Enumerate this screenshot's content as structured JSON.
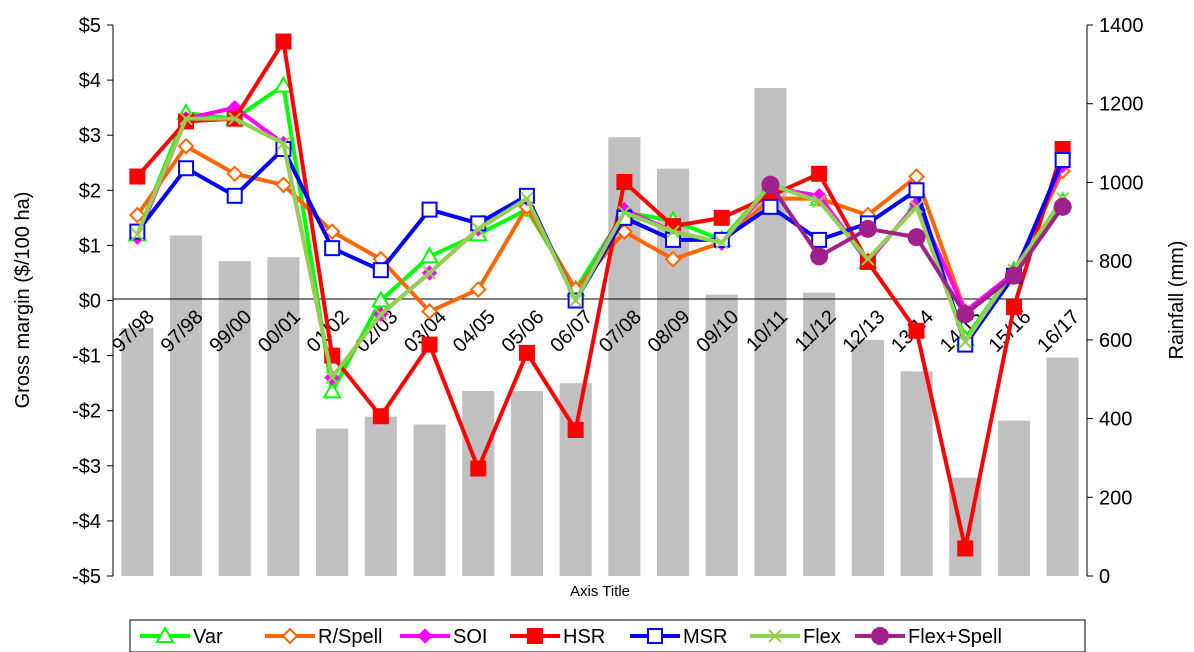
{
  "chart_data": {
    "type": "line",
    "categories": [
      "97/98",
      "97/98",
      "99/00",
      "00/01",
      "01/02",
      "02/03",
      "03/04",
      "04/05",
      "05/06",
      "06/07",
      "07/08",
      "08/09",
      "09/10",
      "10/11",
      "11/12",
      "12/13",
      "13/14",
      "14/15",
      "15/16",
      "16/17"
    ],
    "xlabel": "Axis Title",
    "ylabel": "Gross margin ($/100 ha)",
    "y2label": "Rainfall (mm)",
    "ylim": [
      -5,
      5
    ],
    "y2lim": [
      0,
      1400
    ],
    "yticks": [
      "$5",
      "$4",
      "$3",
      "$2",
      "$1",
      "$0",
      "-$1",
      "-$2",
      "-$3",
      "-$4",
      "-$5"
    ],
    "y2ticks": [
      "1400",
      "1200",
      "1000",
      "800",
      "600",
      "400",
      "200",
      "0"
    ],
    "bars": {
      "name": "Rainfall",
      "color": "#c0c0c0",
      "values": [
        630,
        865,
        800,
        810,
        375,
        405,
        385,
        470,
        470,
        490,
        1115,
        1035,
        715,
        1240,
        720,
        600,
        520,
        250,
        395,
        555
      ]
    },
    "series": [
      {
        "name": "Var",
        "color": "#00ff00",
        "marker": "triangle",
        "values": [
          1.2,
          3.4,
          3.3,
          3.9,
          -1.65,
          0.0,
          0.8,
          1.2,
          1.65,
          0.2,
          1.6,
          1.45,
          1.1,
          2.1,
          1.85,
          0.7,
          1.75,
          -0.7,
          0.55,
          1.8
        ]
      },
      {
        "name": "R/Spell",
        "color": "#ff6600",
        "marker": "diamond-open",
        "values": [
          1.55,
          2.8,
          2.3,
          2.1,
          1.25,
          0.75,
          -0.2,
          0.2,
          1.7,
          0.2,
          1.25,
          0.75,
          1.05,
          1.85,
          1.85,
          1.55,
          2.25,
          -0.2,
          0.5,
          2.35
        ]
      },
      {
        "name": "SOI",
        "color": "#ff00ff",
        "marker": "diamond",
        "values": [
          1.15,
          3.3,
          3.5,
          2.85,
          -1.4,
          -0.25,
          0.5,
          1.3,
          1.85,
          0.0,
          1.65,
          1.25,
          1.05,
          2.05,
          1.9,
          0.7,
          1.75,
          -0.2,
          0.5,
          2.45
        ]
      },
      {
        "name": "HSR",
        "color": "#ff0000",
        "marker": "square",
        "values": [
          2.25,
          3.25,
          3.3,
          4.7,
          -1.0,
          -2.1,
          -0.8,
          -3.05,
          -0.95,
          -2.35,
          2.15,
          1.35,
          1.5,
          1.9,
          2.3,
          0.7,
          -0.55,
          -4.5,
          -0.12,
          2.75
        ]
      },
      {
        "name": "MSR",
        "color": "#0000ff",
        "marker": "square-open",
        "values": [
          1.25,
          2.4,
          1.9,
          2.75,
          0.95,
          0.55,
          1.65,
          1.4,
          1.9,
          0.0,
          1.5,
          1.1,
          1.1,
          1.7,
          1.1,
          1.4,
          2.0,
          -0.8,
          0.45,
          2.55
        ]
      },
      {
        "name": "Flex",
        "color": "#92d050",
        "marker": "x",
        "values": [
          1.2,
          3.3,
          3.3,
          2.85,
          -1.4,
          -0.25,
          0.5,
          1.3,
          1.85,
          0.0,
          1.6,
          1.25,
          1.05,
          2.1,
          1.8,
          0.75,
          1.7,
          -0.75,
          0.55,
          1.85
        ]
      },
      {
        "name": "Flex+Spell",
        "color": "#a0208c",
        "marker": "circle",
        "values": [
          null,
          null,
          null,
          null,
          null,
          null,
          null,
          null,
          null,
          null,
          null,
          null,
          null,
          2.1,
          0.8,
          1.3,
          1.15,
          -0.25,
          0.45,
          1.7
        ]
      }
    ],
    "legend": "bottom",
    "grid": false
  }
}
